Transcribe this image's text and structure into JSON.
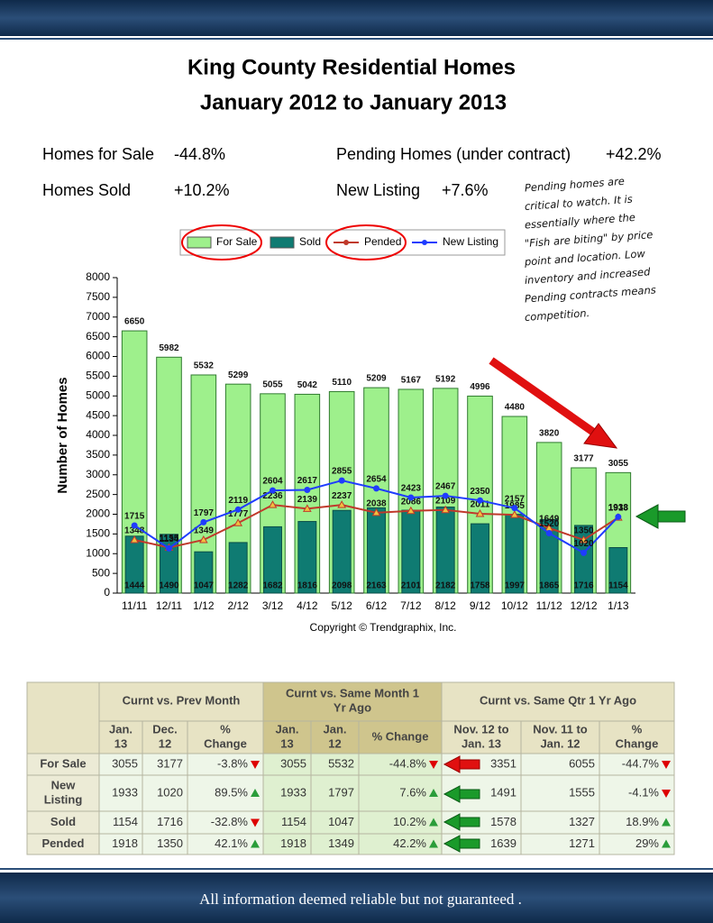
{
  "header": {
    "title_lines": [
      "King County Residential Homes",
      "January 2012 to January 2013"
    ]
  },
  "stats": [
    {
      "label": "Homes for Sale",
      "value": "-44.8%"
    },
    {
      "label": "Homes Sold",
      "value": "+10.2%"
    },
    {
      "label": "Pending Homes (under contract)",
      "value": "+42.2%"
    },
    {
      "label": "New Listing",
      "value": "+7.6%"
    }
  ],
  "note": {
    "lines": [
      "Pending homes are",
      "critical to watch. It is",
      "essentially where the",
      "\"Fish are biting\" by price",
      "point and location. Low",
      "inventory and increased",
      "Pending contracts means",
      "competition."
    ]
  },
  "chart_data": {
    "type": "bar",
    "categories": [
      "11/11",
      "12/11",
      "1/12",
      "2/12",
      "3/12",
      "4/12",
      "5/12",
      "6/12",
      "7/12",
      "8/12",
      "9/12",
      "10/12",
      "11/12",
      "12/12",
      "1/13"
    ],
    "series": [
      {
        "name": "For Sale",
        "type": "bar",
        "color": "#9ef08c",
        "values": [
          6650,
          5982,
          5532,
          5299,
          5055,
          5042,
          5110,
          5209,
          5167,
          5192,
          4996,
          4480,
          3820,
          3177,
          3055
        ]
      },
      {
        "name": "Sold",
        "type": "bar",
        "color": "#0f7b72",
        "values": [
          1444,
          1490,
          1047,
          1282,
          1682,
          1816,
          2098,
          2163,
          2101,
          2182,
          1758,
          1997,
          1865,
          1716,
          1154
        ]
      },
      {
        "name": "Pended",
        "type": "line",
        "color": "#c0392b",
        "values": [
          1348,
          1155,
          1349,
          1777,
          2236,
          2139,
          2237,
          2038,
          2086,
          2109,
          2011,
          1985,
          1649,
          1350,
          1918
        ]
      },
      {
        "name": "New Listing",
        "type": "line",
        "color": "#1f3cff",
        "values": [
          1715,
          1134,
          1797,
          2119,
          2604,
          2617,
          2855,
          2654,
          2423,
          2467,
          2350,
          2157,
          1520,
          1020,
          1933
        ]
      }
    ],
    "ylim": [
      0,
      8000
    ],
    "yticks": [
      0,
      500,
      1000,
      1500,
      2000,
      2500,
      3000,
      3500,
      4000,
      4500,
      5000,
      5500,
      6000,
      6500,
      7000,
      7500,
      8000
    ],
    "y_label": "Number of Homes",
    "copyright": "Copyright © Trendgraphix, Inc."
  },
  "table": {
    "groups": [
      [
        "Curnt vs. Prev Month"
      ],
      [
        "Curnt vs. Same Month 1",
        "Yr Ago"
      ],
      [
        "Curnt vs. Same Qtr 1 Yr Ago"
      ]
    ],
    "columns": [
      [
        "Jan.",
        "13"
      ],
      [
        "Dec.",
        "12"
      ],
      [
        "%",
        "Change"
      ],
      [
        "Jan.",
        "13"
      ],
      [
        "Jan.",
        "12"
      ],
      [
        "% Change"
      ],
      [
        "Nov. 12 to",
        "Jan. 13"
      ],
      [
        "Nov. 11 to",
        "Jan. 12"
      ],
      [
        "%",
        "Change"
      ]
    ],
    "rows": [
      {
        "label": [
          "For Sale"
        ],
        "cells": [
          "3055",
          "3177",
          "-3.8%",
          "3055",
          "5532",
          "-44.8%",
          "3351",
          "6055",
          "-44.7%"
        ]
      },
      {
        "label": [
          "New",
          "Listing"
        ],
        "cells": [
          "1933",
          "1020",
          "89.5%",
          "1933",
          "1797",
          "7.6%",
          "1491",
          "1555",
          "-4.1%"
        ]
      },
      {
        "label": [
          "Sold"
        ],
        "cells": [
          "1154",
          "1716",
          "-32.8%",
          "1154",
          "1047",
          "10.2%",
          "1578",
          "1327",
          "18.9%"
        ]
      },
      {
        "label": [
          "Pended"
        ],
        "cells": [
          "1918",
          "1350",
          "42.1%",
          "1918",
          "1349",
          "42.2%",
          "1639",
          "1271",
          "29%"
        ]
      }
    ]
  },
  "footer": {
    "text": "All information deemed reliable but not guaranteed ."
  }
}
